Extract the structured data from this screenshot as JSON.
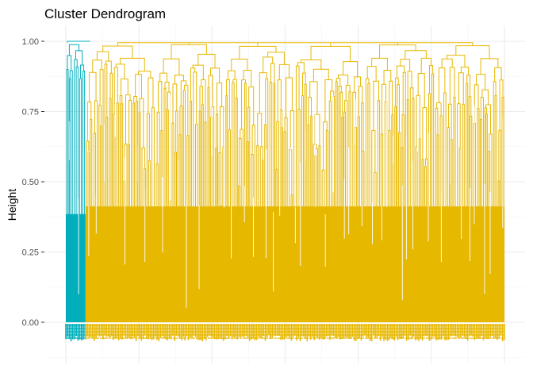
{
  "chart_data": {
    "type": "dendrogram",
    "title": "Cluster Dendrogram",
    "xlabel": "",
    "ylabel": "Height",
    "ylim": [
      -0.1,
      1.05
    ],
    "y_ticks": [
      {
        "value": 0.0,
        "label": "0.00"
      },
      {
        "value": 0.25,
        "label": "0.25"
      },
      {
        "value": 0.5,
        "label": "0.50"
      },
      {
        "value": 0.75,
        "label": "0.75"
      },
      {
        "value": 1.0,
        "label": "1.00"
      }
    ],
    "grid": true,
    "clusters": [
      {
        "color": "#00AFBB",
        "leaf_fraction": 0.045,
        "root_height": 1.0,
        "min_merge_height": 0.4,
        "typical_merge_height": 0.7
      },
      {
        "color": "#E7B800",
        "leaf_fraction": 0.955,
        "root_height": 0.995,
        "min_merge_height": 0.38,
        "typical_merge_height": 0.75
      }
    ],
    "leaf_labels_below_zero": true
  }
}
